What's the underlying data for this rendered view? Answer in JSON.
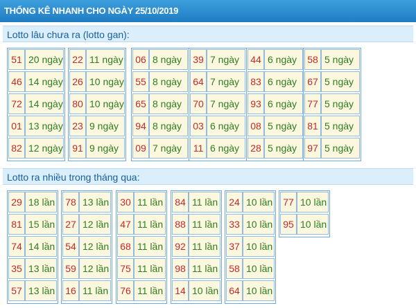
{
  "title": "THỐNG KÊ NHANH CHO NGÀY 25/10/2019",
  "section_gan": {
    "label": "Lotto lâu chưa ra (lotto gan):",
    "columns": [
      [
        [
          "51",
          "20 ngày"
        ],
        [
          "46",
          "14 ngày"
        ],
        [
          "72",
          "14 ngày"
        ],
        [
          "01",
          "13 ngày"
        ],
        [
          "82",
          "12 ngày"
        ]
      ],
      [
        [
          "22",
          "11 ngày"
        ],
        [
          "26",
          "10 ngày"
        ],
        [
          "80",
          "10 ngày"
        ],
        [
          "23",
          "9 ngày"
        ],
        [
          "91",
          "9 ngày"
        ]
      ],
      [
        [
          "06",
          "8 ngày"
        ],
        [
          "55",
          "8 ngày"
        ],
        [
          "65",
          "8 ngày"
        ],
        [
          "94",
          "8 ngày"
        ],
        [
          "09",
          "7 ngày"
        ]
      ],
      [
        [
          "39",
          "7 ngày"
        ],
        [
          "64",
          "7 ngày"
        ],
        [
          "70",
          "7 ngày"
        ],
        [
          "03",
          "6 ngày"
        ],
        [
          "11",
          "6 ngày"
        ]
      ],
      [
        [
          "44",
          "6 ngày"
        ],
        [
          "83",
          "6 ngày"
        ],
        [
          "93",
          "6 ngày"
        ],
        [
          "08",
          "5 ngày"
        ],
        [
          "28",
          "5 ngày"
        ]
      ],
      [
        [
          "58",
          "5 ngày"
        ],
        [
          "67",
          "5 ngày"
        ],
        [
          "77",
          "5 ngày"
        ],
        [
          "81",
          "5 ngày"
        ],
        [
          "97",
          "5 ngày"
        ]
      ]
    ]
  },
  "section_nhieu": {
    "label": "Lotto ra nhiều trong tháng qua:",
    "columns": [
      [
        [
          "29",
          "18 lần"
        ],
        [
          "81",
          "15 lần"
        ],
        [
          "74",
          "14 lần"
        ],
        [
          "35",
          "13 lần"
        ],
        [
          "57",
          "13 lần"
        ]
      ],
      [
        [
          "78",
          "13 lần"
        ],
        [
          "27",
          "12 lần"
        ],
        [
          "54",
          "12 lần"
        ],
        [
          "59",
          "12 lần"
        ],
        [
          "16",
          "11 lần"
        ]
      ],
      [
        [
          "30",
          "11 lần"
        ],
        [
          "47",
          "11 lần"
        ],
        [
          "68",
          "11 lần"
        ],
        [
          "75",
          "11 lần"
        ],
        [
          "76",
          "11 lần"
        ]
      ],
      [
        [
          "84",
          "11 lần"
        ],
        [
          "88",
          "11 lần"
        ],
        [
          "92",
          "11 lần"
        ],
        [
          "98",
          "11 lần"
        ],
        [
          "14",
          "10 lần"
        ]
      ],
      [
        [
          "24",
          "10 lần"
        ],
        [
          "33",
          "10 lần"
        ],
        [
          "37",
          "10 lần"
        ],
        [
          "58",
          "10 lần"
        ],
        [
          "64",
          "10 lần"
        ]
      ],
      [
        [
          "77",
          "10 lần"
        ],
        [
          "95",
          "10 lần"
        ]
      ]
    ]
  }
}
